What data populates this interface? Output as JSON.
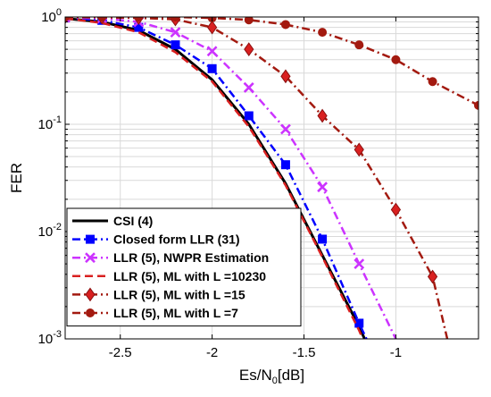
{
  "chart_data": {
    "type": "line",
    "title": "",
    "xlabel_main": "Es/N",
    "xlabel_sub": "0",
    "xlabel_unit": "[dB]",
    "ylabel": "FER",
    "xlim": [
      -2.8,
      -0.55
    ],
    "ylim": [
      0.001,
      1
    ],
    "yscale": "log",
    "grid": true,
    "legend_position": "bottom-left",
    "x_ticks": [
      -2.5,
      -2,
      -1.5,
      -1
    ],
    "x_tick_labels": [
      "-2.5",
      "-2",
      "-1.5",
      "-1"
    ],
    "y_ticks": [
      {
        "base": "10",
        "exp": "0",
        "value": 1
      },
      {
        "base": "10",
        "exp": "-1",
        "value": 0.1
      },
      {
        "base": "10",
        "exp": "-2",
        "value": 0.01
      },
      {
        "base": "10",
        "exp": "-3",
        "value": 0.001
      }
    ],
    "series": [
      {
        "name": "CSI (4)",
        "color": "#000000",
        "dash": "solid",
        "width": 3,
        "marker": "none",
        "marker_color": "#000000",
        "x": [
          -2.8,
          -2.6,
          -2.4,
          -2.2,
          -2.0,
          -1.8,
          -1.6,
          -1.4,
          -1.2,
          -1.17
        ],
        "y": [
          0.97,
          0.9,
          0.75,
          0.5,
          0.26,
          0.1,
          0.028,
          0.006,
          0.0013,
          0.001
        ]
      },
      {
        "name": "Closed form LLR (31)",
        "color": "#0000ff",
        "dash": "dashdot",
        "width": 2.5,
        "marker": "square",
        "marker_color": "#0000ff",
        "x": [
          -2.8,
          -2.6,
          -2.4,
          -2.2,
          -2.0,
          -1.8,
          -1.6,
          -1.4,
          -1.2,
          -1.16
        ],
        "y": [
          0.98,
          0.93,
          0.8,
          0.55,
          0.33,
          0.12,
          0.042,
          0.0085,
          0.0014,
          0.001
        ]
      },
      {
        "name": "LLR (5), NWPR Estimation",
        "color": "#cc33ff",
        "dash": "dashdot",
        "width": 2.5,
        "marker": "x",
        "marker_color": "#cc33ff",
        "x": [
          -2.8,
          -2.6,
          -2.4,
          -2.2,
          -2.0,
          -1.8,
          -1.6,
          -1.4,
          -1.2,
          -1.0
        ],
        "y": [
          0.99,
          0.97,
          0.9,
          0.72,
          0.48,
          0.22,
          0.09,
          0.026,
          0.005,
          0.001
        ]
      },
      {
        "name": "LLR (5), ML with L =10230",
        "color": "#d92020",
        "dash": "dashed",
        "width": 2.5,
        "marker": "none",
        "marker_color": "#d92020",
        "x": [
          -2.8,
          -2.6,
          -2.4,
          -2.2,
          -2.0,
          -1.8,
          -1.6,
          -1.4,
          -1.2,
          -1.18
        ],
        "y": [
          0.97,
          0.88,
          0.72,
          0.47,
          0.25,
          0.095,
          0.027,
          0.0058,
          0.0012,
          0.001
        ]
      },
      {
        "name": "LLR (5), ML with L =15",
        "color": "#a31a10",
        "dash": "dashdot",
        "width": 2.5,
        "marker": "diamond",
        "marker_color": "#d92020",
        "x": [
          -2.8,
          -2.6,
          -2.4,
          -2.2,
          -2.0,
          -1.8,
          -1.6,
          -1.4,
          -1.2,
          -1.0,
          -0.8,
          -0.72
        ],
        "y": [
          1.0,
          0.99,
          0.98,
          0.95,
          0.8,
          0.5,
          0.28,
          0.12,
          0.058,
          0.016,
          0.0038,
          0.001
        ]
      },
      {
        "name": "LLR (5), ML with L =7",
        "color": "#a31a10",
        "dash": "dashdot",
        "width": 2.5,
        "marker": "circle",
        "marker_color": "#a31a10",
        "x": [
          -2.8,
          -2.6,
          -2.4,
          -2.2,
          -2.0,
          -1.8,
          -1.6,
          -1.4,
          -1.2,
          -1.0,
          -0.8,
          -0.55
        ],
        "y": [
          1.0,
          1.0,
          1.0,
          1.0,
          0.98,
          0.94,
          0.85,
          0.72,
          0.55,
          0.4,
          0.25,
          0.15
        ]
      }
    ]
  }
}
